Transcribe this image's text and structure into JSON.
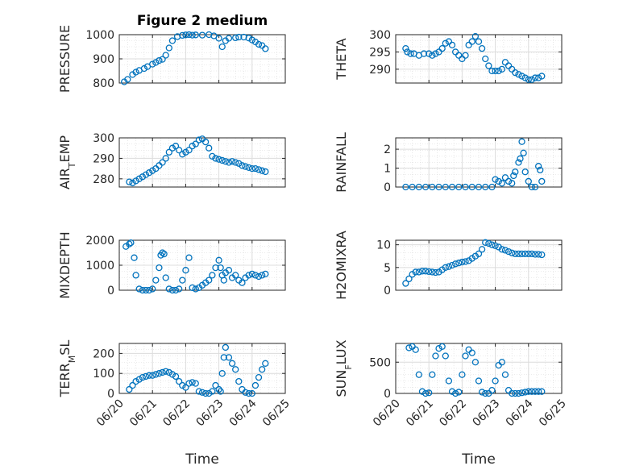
{
  "figure": {
    "title": "Figure 2 medium",
    "marker_color": "#0072BD"
  },
  "x_labels": [
    "Time",
    "Time"
  ],
  "chart_data": [
    {
      "type": "scatter",
      "ylabel": "PRESSURE",
      "ylabel_sub": "",
      "ylabel_tail": "",
      "xlim": [
        "06/20",
        "06/25"
      ],
      "ylim": [
        800,
        1000
      ],
      "yticks": [
        800,
        900,
        1000
      ],
      "x": [
        0.15,
        0.25,
        0.4,
        0.5,
        0.6,
        0.75,
        0.85,
        1.0,
        1.1,
        1.2,
        1.3,
        1.4,
        1.5,
        1.6,
        1.75,
        1.9,
        2.0,
        2.1,
        2.2,
        2.3,
        2.5,
        2.7,
        2.85,
        3.0,
        3.1,
        3.2,
        3.3,
        3.5,
        3.6,
        3.75,
        3.9,
        4.0,
        4.1,
        4.2,
        4.3,
        4.4
      ],
      "y": [
        805,
        815,
        835,
        845,
        852,
        860,
        868,
        878,
        885,
        893,
        898,
        915,
        945,
        975,
        992,
        997,
        999,
        1000,
        998,
        999,
        998,
        1000,
        995,
        985,
        950,
        975,
        985,
        987,
        990,
        990,
        986,
        978,
        970,
        960,
        955,
        942
      ]
    },
    {
      "type": "scatter",
      "ylabel": "THETA",
      "ylabel_sub": "",
      "ylabel_tail": "",
      "xlim": [
        "06/20",
        "06/25"
      ],
      "ylim": [
        286,
        300
      ],
      "yticks": [
        290,
        295,
        300
      ],
      "x": [
        0.3,
        0.35,
        0.45,
        0.55,
        0.7,
        0.85,
        1.0,
        1.1,
        1.2,
        1.3,
        1.4,
        1.5,
        1.6,
        1.7,
        1.8,
        1.9,
        2.0,
        2.1,
        2.2,
        2.3,
        2.4,
        2.5,
        2.6,
        2.7,
        2.8,
        2.9,
        3.0,
        3.1,
        3.2,
        3.3,
        3.4,
        3.5,
        3.6,
        3.7,
        3.8,
        3.9,
        4.0,
        4.1,
        4.2,
        4.3,
        4.4
      ],
      "y": [
        296,
        295,
        294.5,
        294.5,
        294,
        294.5,
        294.5,
        294,
        294.5,
        295,
        296,
        297.5,
        298,
        297,
        295,
        294,
        293,
        294,
        297,
        298,
        299.5,
        298,
        296,
        293,
        291,
        289.5,
        289.5,
        289.5,
        290,
        292,
        291,
        290,
        289,
        288.5,
        288,
        287.5,
        287,
        287,
        287.5,
        287.5,
        288
      ]
    },
    {
      "type": "scatter",
      "ylabel": "AIR",
      "ylabel_sub": "T",
      "ylabel_tail": "EMP",
      "xlim": [
        "06/20",
        "06/25"
      ],
      "ylim": [
        276,
        300
      ],
      "yticks": [
        280,
        290,
        300
      ],
      "x": [
        0.3,
        0.4,
        0.5,
        0.6,
        0.7,
        0.8,
        0.9,
        1.0,
        1.1,
        1.2,
        1.3,
        1.4,
        1.5,
        1.6,
        1.7,
        1.8,
        1.9,
        2.0,
        2.1,
        2.2,
        2.3,
        2.4,
        2.5,
        2.6,
        2.7,
        2.8,
        2.9,
        3.0,
        3.1,
        3.2,
        3.3,
        3.4,
        3.5,
        3.6,
        3.7,
        3.8,
        3.9,
        4.0,
        4.1,
        4.2,
        4.3,
        4.4
      ],
      "y": [
        278.5,
        278,
        279,
        280,
        281,
        282,
        283,
        284,
        285,
        286.5,
        288,
        290,
        293,
        295,
        296,
        294,
        292,
        293,
        294,
        296,
        297,
        299,
        299.5,
        298,
        295,
        291,
        290,
        289.5,
        289,
        288.5,
        288,
        288.5,
        288,
        287.5,
        286.5,
        286,
        285.5,
        285,
        285,
        284.5,
        284,
        283.5
      ]
    },
    {
      "type": "scatter",
      "ylabel": "RAINFALL",
      "ylabel_sub": "",
      "ylabel_tail": "",
      "xlim": [
        "06/20",
        "06/25"
      ],
      "ylim": [
        0,
        2.6
      ],
      "yticks": [
        0,
        1,
        2
      ],
      "x": [
        0.3,
        0.5,
        0.7,
        0.9,
        1.1,
        1.3,
        1.5,
        1.7,
        1.9,
        2.1,
        2.3,
        2.5,
        2.7,
        2.9,
        3.0,
        3.1,
        3.2,
        3.3,
        3.4,
        3.5,
        3.55,
        3.6,
        3.7,
        3.75,
        3.8,
        3.85,
        3.9,
        4.0,
        4.1,
        4.2,
        4.3,
        4.35,
        4.4
      ],
      "y": [
        0,
        0,
        0,
        0,
        0,
        0,
        0,
        0,
        0,
        0,
        0,
        0,
        0,
        0,
        0.4,
        0.3,
        0.2,
        0.5,
        0.3,
        0.2,
        0.6,
        0.8,
        1.3,
        1.5,
        2.4,
        1.8,
        0.8,
        0.3,
        0,
        0,
        1.1,
        0.9,
        0.3
      ]
    },
    {
      "type": "scatter",
      "ylabel": "MIXDEPTH",
      "ylabel_sub": "",
      "ylabel_tail": "",
      "xlim": [
        "06/20",
        "06/25"
      ],
      "ylim": [
        0,
        2000
      ],
      "yticks": [
        0,
        1000,
        2000
      ],
      "x": [
        0.2,
        0.3,
        0.35,
        0.45,
        0.5,
        0.6,
        0.7,
        0.8,
        0.9,
        1.0,
        1.1,
        1.2,
        1.25,
        1.3,
        1.35,
        1.4,
        1.5,
        1.6,
        1.7,
        1.8,
        1.9,
        2.0,
        2.1,
        2.2,
        2.3,
        2.4,
        2.5,
        2.6,
        2.7,
        2.8,
        2.9,
        3.0,
        3.05,
        3.1,
        3.15,
        3.2,
        3.3,
        3.4,
        3.5,
        3.6,
        3.7,
        3.8,
        3.9,
        4.0,
        4.1,
        4.2,
        4.3,
        4.4
      ],
      "y": [
        1750,
        1850,
        1900,
        1300,
        600,
        50,
        0,
        0,
        0,
        50,
        400,
        900,
        1400,
        1500,
        1450,
        500,
        50,
        0,
        0,
        50,
        400,
        800,
        1300,
        100,
        50,
        100,
        200,
        300,
        400,
        600,
        900,
        1200,
        900,
        600,
        400,
        700,
        800,
        500,
        600,
        400,
        300,
        500,
        600,
        650,
        600,
        550,
        600,
        650
      ]
    },
    {
      "type": "scatter",
      "ylabel": "H2OMIXRA",
      "ylabel_sub": "",
      "ylabel_tail": "",
      "xlim": [
        "06/20",
        "06/25"
      ],
      "ylim": [
        0,
        11
      ],
      "yticks": [
        0,
        5,
        10
      ],
      "x": [
        0.3,
        0.4,
        0.5,
        0.6,
        0.7,
        0.8,
        0.9,
        1.0,
        1.1,
        1.2,
        1.3,
        1.4,
        1.5,
        1.6,
        1.7,
        1.8,
        1.9,
        2.0,
        2.1,
        2.2,
        2.3,
        2.4,
        2.5,
        2.6,
        2.7,
        2.8,
        2.9,
        3.0,
        3.1,
        3.2,
        3.3,
        3.4,
        3.5,
        3.6,
        3.7,
        3.8,
        3.9,
        4.0,
        4.1,
        4.2,
        4.3,
        4.4
      ],
      "y": [
        1.5,
        2.5,
        3.5,
        4,
        4,
        4.2,
        4.2,
        4.1,
        4,
        3.9,
        4,
        4.5,
        5,
        5.2,
        5.5,
        5.8,
        6,
        6.2,
        6.3,
        6.5,
        7,
        7.5,
        8,
        9,
        10.5,
        10.3,
        10,
        9.8,
        9.5,
        9,
        8.8,
        8.5,
        8.2,
        8,
        8,
        8,
        8,
        8,
        8,
        7.9,
        7.9,
        7.8
      ]
    },
    {
      "type": "scatter",
      "ylabel": "TERR",
      "ylabel_sub": "M",
      "ylabel_tail": "SL",
      "xlim": [
        "06/20",
        "06/25"
      ],
      "ylim": [
        0,
        250
      ],
      "yticks": [
        0,
        100,
        200
      ],
      "x": [
        0.3,
        0.4,
        0.5,
        0.6,
        0.7,
        0.8,
        0.9,
        1.0,
        1.1,
        1.2,
        1.3,
        1.4,
        1.5,
        1.6,
        1.7,
        1.8,
        1.9,
        2.0,
        2.1,
        2.2,
        2.3,
        2.4,
        2.5,
        2.6,
        2.7,
        2.8,
        2.9,
        3.0,
        3.05,
        3.1,
        3.15,
        3.2,
        3.3,
        3.4,
        3.5,
        3.6,
        3.7,
        3.8,
        3.9,
        4.0,
        4.1,
        4.2,
        4.3,
        4.4
      ],
      "y": [
        20,
        40,
        60,
        70,
        80,
        85,
        90,
        90,
        95,
        100,
        105,
        110,
        105,
        95,
        85,
        60,
        40,
        30,
        50,
        55,
        50,
        10,
        5,
        0,
        0,
        10,
        40,
        20,
        10,
        100,
        180,
        230,
        180,
        150,
        120,
        60,
        20,
        5,
        0,
        0,
        40,
        80,
        120,
        150
      ]
    },
    {
      "type": "scatter",
      "ylabel": "SUN",
      "ylabel_sub": "F",
      "ylabel_tail": "LUX",
      "xlim": [
        "06/20",
        "06/25"
      ],
      "ylim": [
        0,
        800
      ],
      "yticks": [
        0,
        500
      ],
      "x": [
        0.4,
        0.5,
        0.6,
        0.7,
        0.8,
        0.9,
        1.0,
        1.1,
        1.2,
        1.3,
        1.4,
        1.5,
        1.6,
        1.7,
        1.8,
        1.9,
        2.0,
        2.1,
        2.2,
        2.3,
        2.4,
        2.5,
        2.6,
        2.7,
        2.8,
        2.9,
        3.0,
        3.1,
        3.2,
        3.3,
        3.4,
        3.5,
        3.6,
        3.7,
        3.8,
        3.9,
        4.0,
        4.1,
        4.2,
        4.3,
        4.4
      ],
      "y": [
        730,
        750,
        700,
        300,
        30,
        0,
        10,
        300,
        600,
        720,
        750,
        600,
        200,
        30,
        0,
        20,
        300,
        600,
        700,
        650,
        500,
        200,
        20,
        0,
        0,
        50,
        200,
        450,
        500,
        300,
        50,
        0,
        0,
        0,
        10,
        20,
        30,
        30,
        30,
        30,
        30
      ]
    }
  ]
}
